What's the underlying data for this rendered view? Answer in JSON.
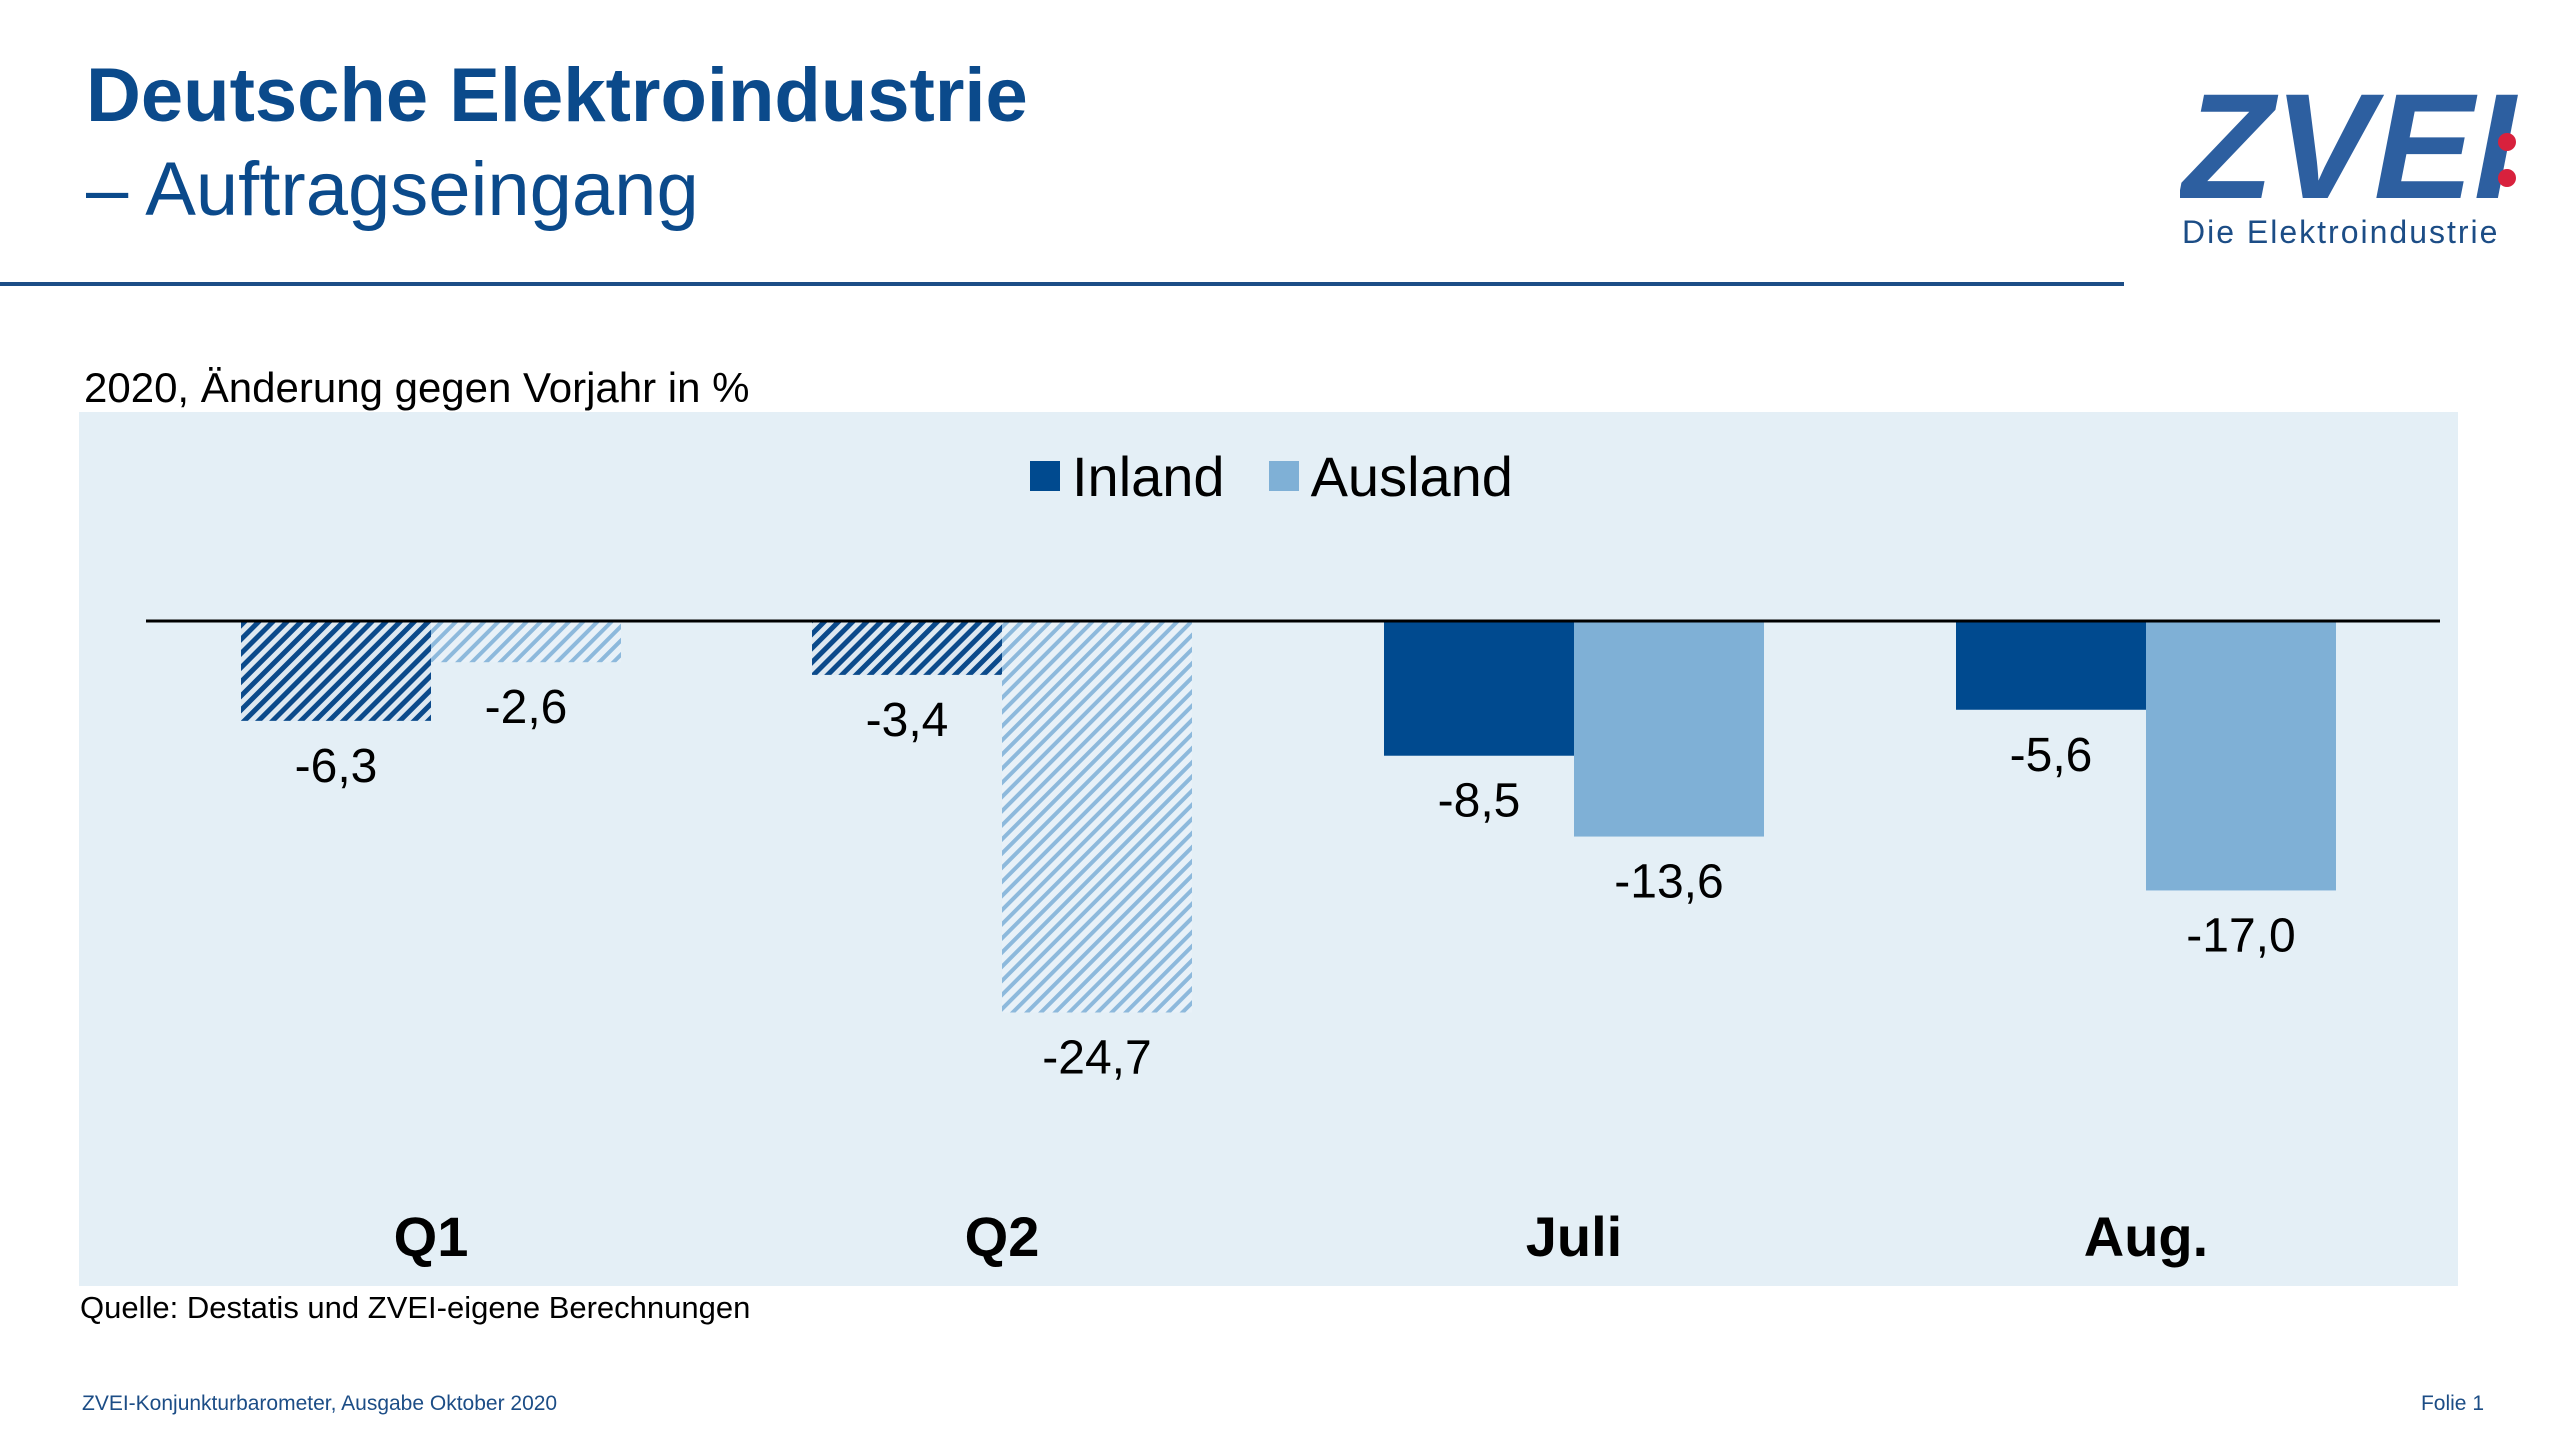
{
  "header": {
    "title_line1": "Deutsche Elektroindustrie",
    "title_line2": "– Auftragseingang"
  },
  "logo": {
    "brand": "ZVEI",
    "tagline": "Die Elektroindustrie"
  },
  "colors": {
    "title": "#0b4a8b",
    "inland": "#004a8f",
    "ausland": "#7fb0d6",
    "plot_background": "#e4eff6",
    "logo_dots": "#d8213d"
  },
  "chart_data": {
    "type": "bar",
    "subtitle": "2020, Änderung gegen Vorjahr in %",
    "categories": [
      "Q1",
      "Q2",
      "Juli",
      "Aug."
    ],
    "series": [
      {
        "name": "Inland",
        "values": [
          -6.3,
          -3.4,
          -8.5,
          -5.6
        ],
        "labels": [
          "-6,3",
          "-3,4",
          "-8,5",
          "-5,6"
        ],
        "hatched": [
          true,
          true,
          false,
          false
        ]
      },
      {
        "name": "Ausland",
        "values": [
          -2.6,
          -24.7,
          -13.6,
          -17.0
        ],
        "labels": [
          "-2,6",
          "-24,7",
          "-13,6",
          "-17,0"
        ],
        "hatched": [
          true,
          true,
          false,
          false
        ]
      }
    ],
    "ylim": [
      -31,
      0
    ],
    "legend_position": "top-center",
    "grid": false
  },
  "footer": {
    "source": "Quelle: Destatis und ZVEI-eigene Berechnungen",
    "left": "ZVEI-Konjunkturbarometer, Ausgabe Oktober 2020",
    "right": "Folie 1"
  }
}
